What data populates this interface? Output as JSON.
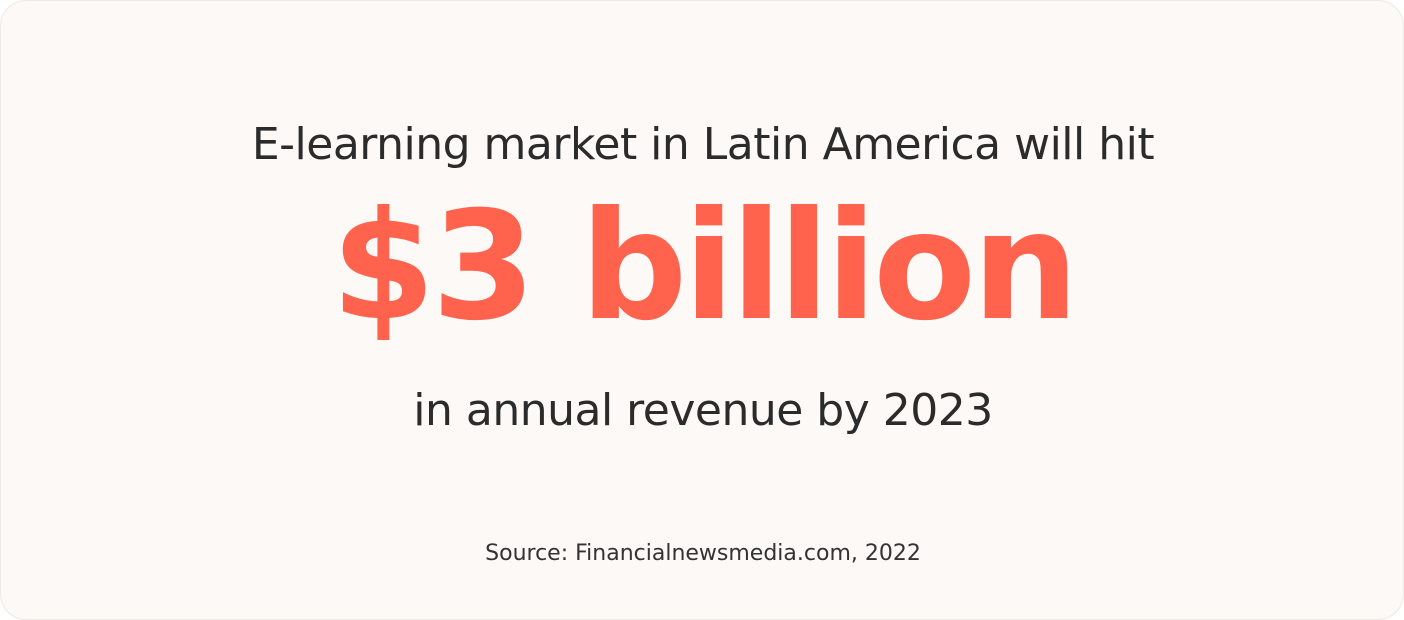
{
  "headline": "E-learning market in Latin America will hit",
  "figure": "$3 billion",
  "subline": "in annual revenue by 2023",
  "source": "Source: Financialnewsmedia.com, 2022"
}
